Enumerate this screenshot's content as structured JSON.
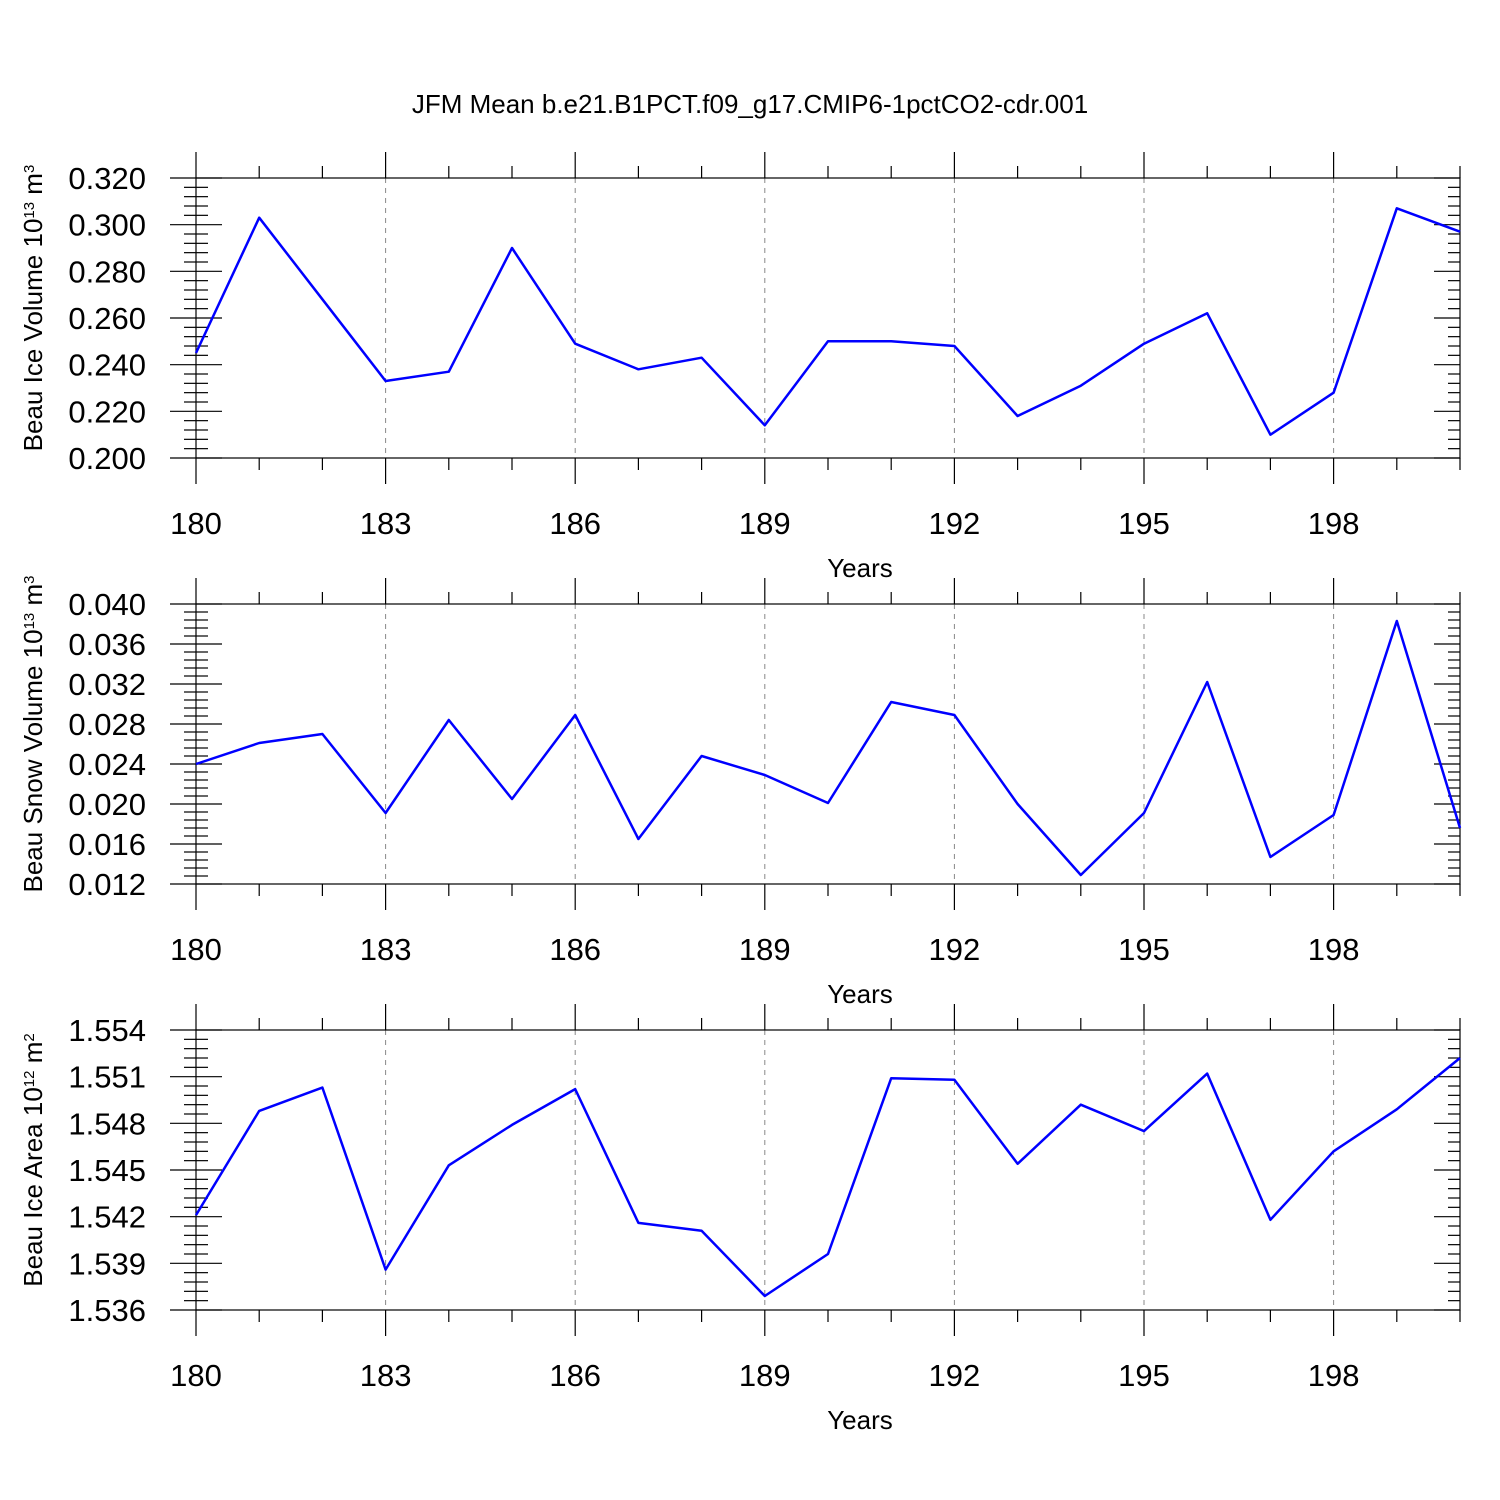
{
  "figure": {
    "title": "JFM Mean b.e21.B1PCT.f09_g17.CMIP6-1pctCO2-cdr.001"
  },
  "colors": {
    "series": "#0000ff",
    "axis": "#000000",
    "grid": "#888888"
  },
  "chart_data": [
    {
      "type": "line",
      "title": "",
      "xlabel": "Years",
      "ylabel": {
        "base": "Beau Ice Volume 10",
        "exp": "13",
        "unit": " m",
        "unit_exp": "3"
      },
      "xlim": [
        180,
        200
      ],
      "ylim": [
        0.2,
        0.32
      ],
      "x_ticks": [
        180,
        183,
        186,
        189,
        192,
        195,
        198
      ],
      "x_tick_labels": [
        "180",
        "183",
        "186",
        "189",
        "192",
        "195",
        "198"
      ],
      "y_ticks": [
        0.2,
        0.22,
        0.24,
        0.26,
        0.28,
        0.3,
        0.32
      ],
      "y_tick_labels": [
        "0.200",
        "0.220",
        "0.240",
        "0.260",
        "0.280",
        "0.300",
        "0.320"
      ],
      "grid": "vertical dashed at labeled x ticks",
      "x": [
        180,
        181,
        182,
        183,
        184,
        185,
        186,
        187,
        188,
        189,
        190,
        191,
        192,
        193,
        194,
        195,
        196,
        197,
        198,
        199,
        200
      ],
      "values": [
        0.245,
        0.303,
        0.268,
        0.233,
        0.237,
        0.29,
        0.249,
        0.238,
        0.243,
        0.214,
        0.25,
        0.25,
        0.248,
        0.218,
        0.231,
        0.249,
        0.262,
        0.21,
        0.228,
        0.307,
        0.297
      ]
    },
    {
      "type": "line",
      "title": "",
      "xlabel": "Years",
      "ylabel": {
        "base": "Beau Snow Volume 10",
        "exp": "13",
        "unit": " m",
        "unit_exp": "3"
      },
      "xlim": [
        180,
        200
      ],
      "ylim": [
        0.012,
        0.04
      ],
      "x_ticks": [
        180,
        183,
        186,
        189,
        192,
        195,
        198
      ],
      "x_tick_labels": [
        "180",
        "183",
        "186",
        "189",
        "192",
        "195",
        "198"
      ],
      "y_ticks": [
        0.012,
        0.016,
        0.02,
        0.024,
        0.028,
        0.032,
        0.036,
        0.04
      ],
      "y_tick_labels": [
        "0.012",
        "0.016",
        "0.020",
        "0.024",
        "0.028",
        "0.032",
        "0.036",
        "0.040"
      ],
      "grid": "vertical dashed at labeled x ticks",
      "x": [
        180,
        181,
        182,
        183,
        184,
        185,
        186,
        187,
        188,
        189,
        190,
        191,
        192,
        193,
        194,
        195,
        196,
        197,
        198,
        199,
        200
      ],
      "values": [
        0.024,
        0.0261,
        0.027,
        0.0191,
        0.0284,
        0.0205,
        0.0289,
        0.0165,
        0.0248,
        0.0229,
        0.0201,
        0.0302,
        0.0289,
        0.02,
        0.0129,
        0.0191,
        0.0322,
        0.0147,
        0.0189,
        0.0383,
        0.0176
      ]
    },
    {
      "type": "line",
      "title": "",
      "xlabel": "Years",
      "ylabel": {
        "base": "Beau Ice Area 10",
        "exp": "12",
        "unit": " m",
        "unit_exp": "2"
      },
      "xlim": [
        180,
        200
      ],
      "ylim": [
        1.536,
        1.554
      ],
      "x_ticks": [
        180,
        183,
        186,
        189,
        192,
        195,
        198
      ],
      "x_tick_labels": [
        "180",
        "183",
        "186",
        "189",
        "192",
        "195",
        "198"
      ],
      "y_ticks": [
        1.536,
        1.539,
        1.542,
        1.545,
        1.548,
        1.551,
        1.554
      ],
      "y_tick_labels": [
        "1.536",
        "1.539",
        "1.542",
        "1.545",
        "1.548",
        "1.551",
        "1.554"
      ],
      "grid": "vertical dashed at labeled x ticks",
      "x": [
        180,
        181,
        182,
        183,
        184,
        185,
        186,
        187,
        188,
        189,
        190,
        191,
        192,
        193,
        194,
        195,
        196,
        197,
        198,
        199,
        200
      ],
      "values": [
        1.5421,
        1.5488,
        1.5503,
        1.5386,
        1.5453,
        1.5479,
        1.5502,
        1.5416,
        1.5411,
        1.5369,
        1.5396,
        1.5509,
        1.5508,
        1.5454,
        1.5492,
        1.5475,
        1.5512,
        1.5418,
        1.5462,
        1.5489,
        1.5522
      ]
    }
  ]
}
